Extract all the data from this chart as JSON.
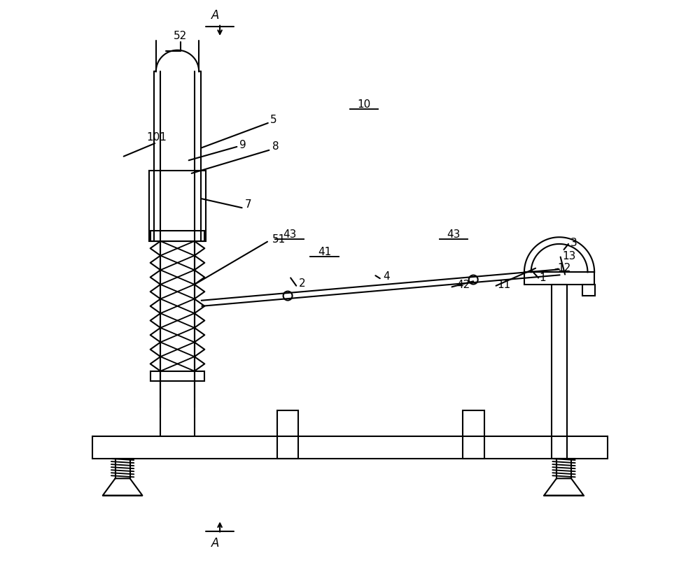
{
  "bg_color": "#ffffff",
  "line_color": "#000000",
  "lw": 1.5,
  "fig_width": 10.0,
  "fig_height": 8.11
}
